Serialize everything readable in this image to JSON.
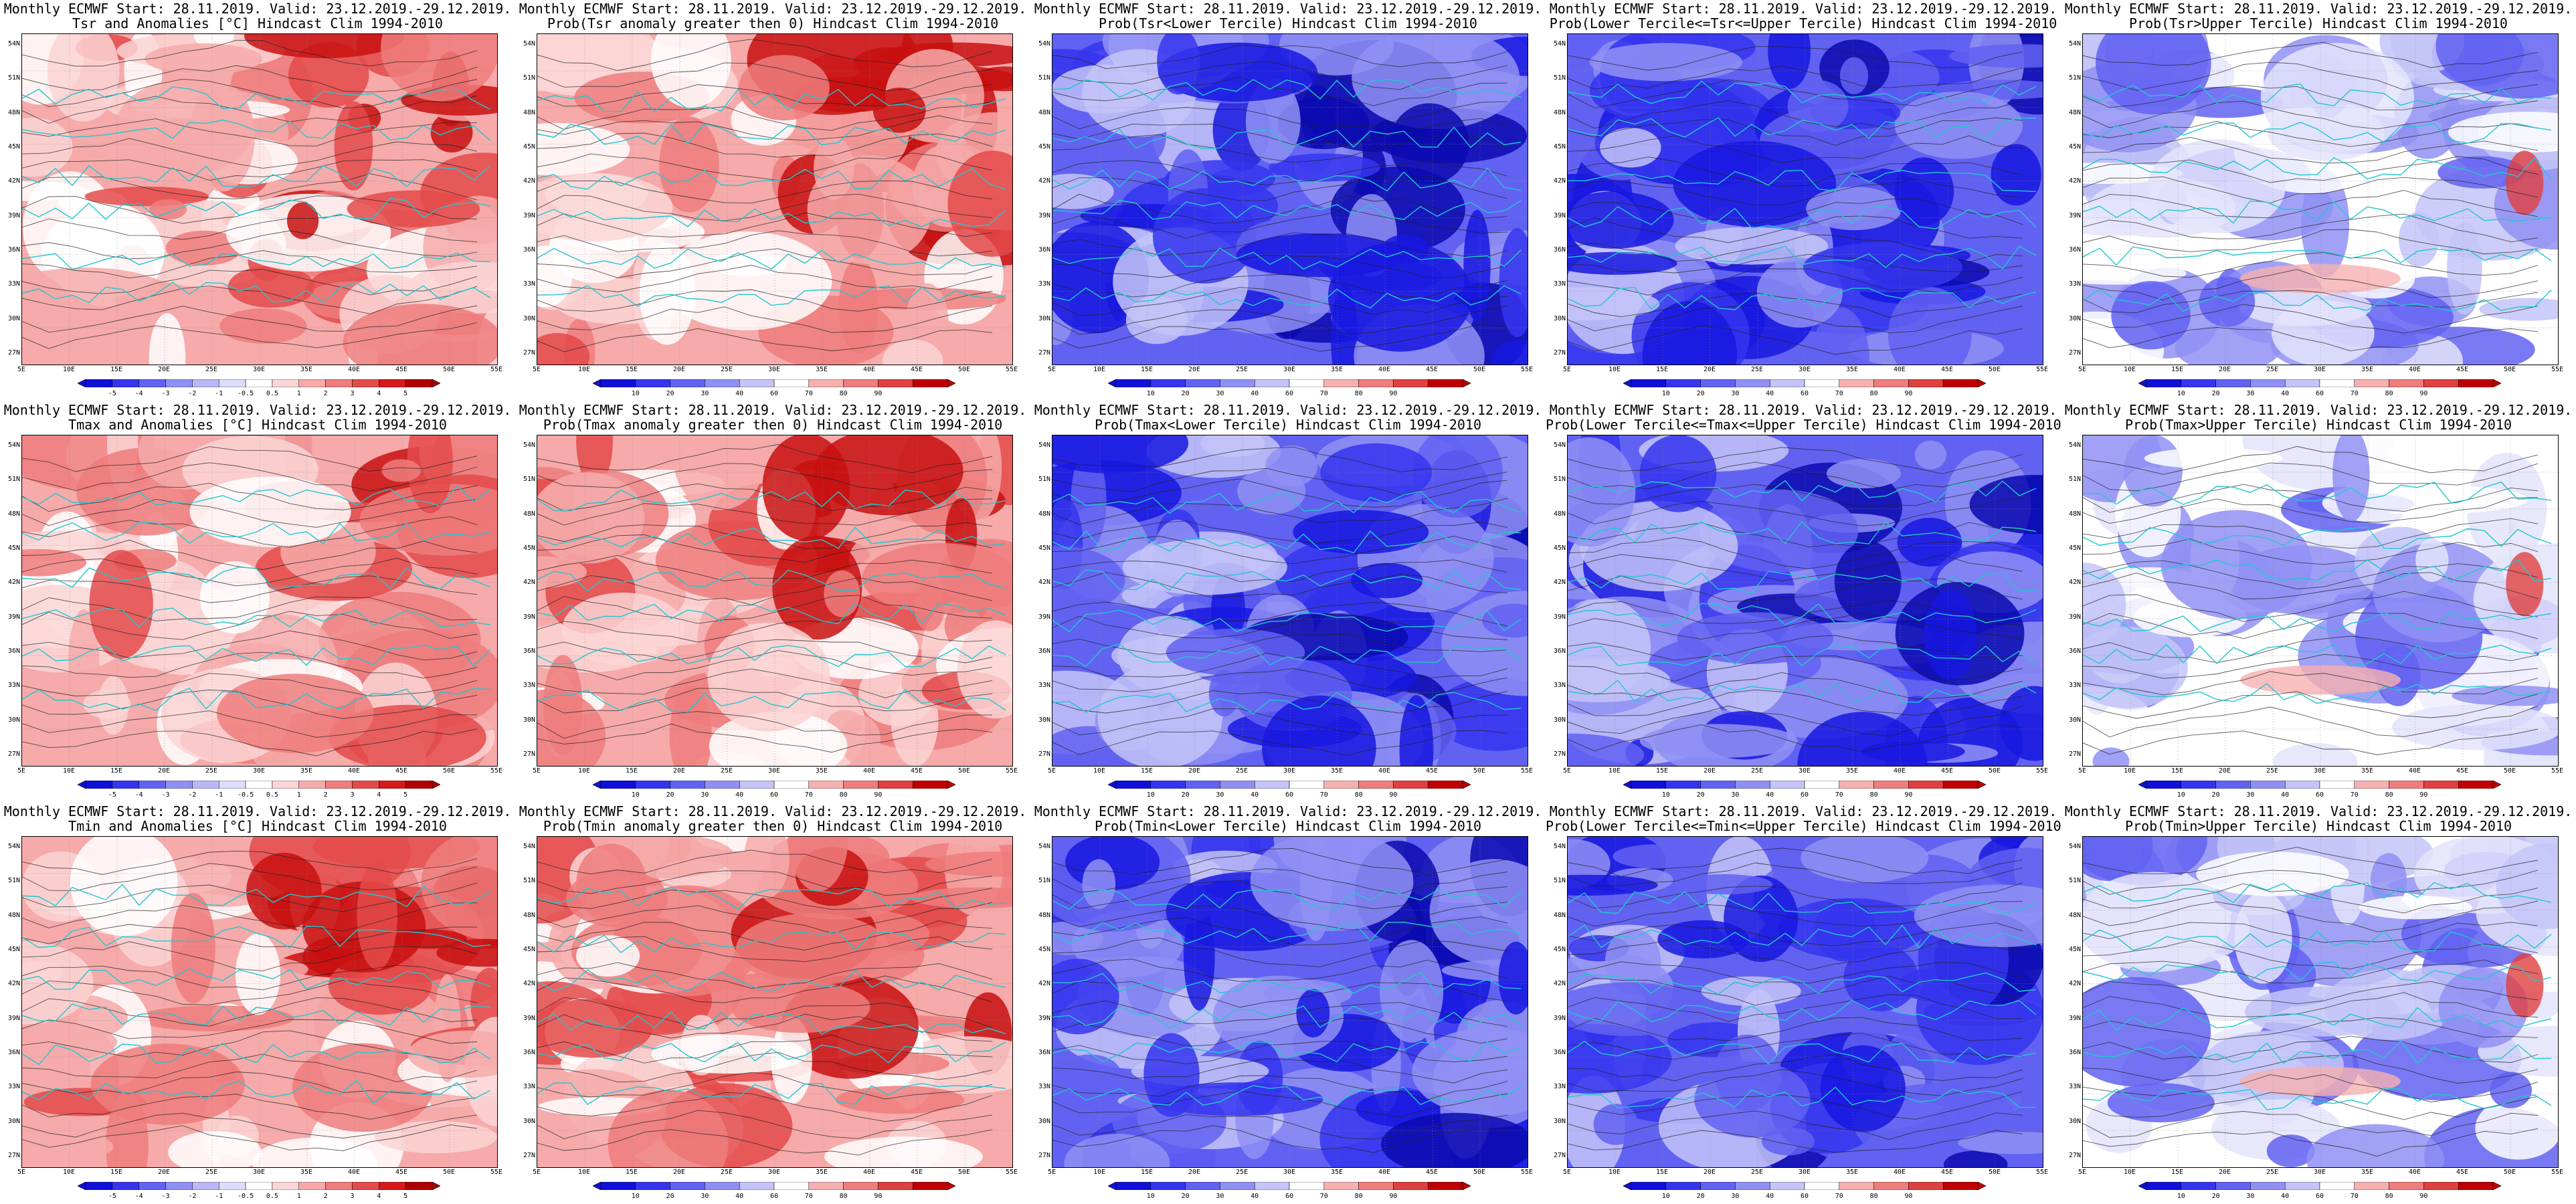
{
  "lat_labels": [
    "54N",
    "51N",
    "48N",
    "45N",
    "42N",
    "39N",
    "36N",
    "33N",
    "30N",
    "27N"
  ],
  "lon_labels": [
    "5E",
    "10E",
    "15E",
    "20E",
    "25E",
    "30E",
    "35E",
    "40E",
    "45E",
    "50E",
    "55E"
  ],
  "colorbars": {
    "anomaly": {
      "ticks": [
        "-5",
        "-4",
        "-3",
        "-2",
        "-1",
        "-0.5",
        "0.5",
        "1",
        "2",
        "3",
        "4",
        "5"
      ],
      "colors": [
        "#1010d8",
        "#3535ee",
        "#6262f2",
        "#9090f4",
        "#b8b8f8",
        "#dcdcfb",
        "#ffffff",
        "#fbd5d5",
        "#f6aaaa",
        "#ee7d7d",
        "#e44a4a",
        "#d81919",
        "#b00000"
      ]
    },
    "prob": {
      "ticks": [
        "10",
        "20",
        "30",
        "40",
        "60",
        "70",
        "80",
        "90"
      ],
      "colors": [
        "#1010d8",
        "#3535ee",
        "#6262f2",
        "#9090f4",
        "#c4c4f8",
        "#ffffff",
        "#f6b0b0",
        "#ee7d7d",
        "#e04040",
        "#c00000"
      ]
    }
  },
  "field_colors": {
    "red": [
      "#ffffff",
      "#fbd5d5",
      "#f6aaaa",
      "#ee7d7d",
      "#e44a4a",
      "#c81010"
    ],
    "blue": [
      "#c4c4f8",
      "#9090f4",
      "#6262f2",
      "#3535ee",
      "#1818e0",
      "#0a0ab0"
    ],
    "light": [
      "#ffffff",
      "#e4e4fb",
      "#c4c4f8",
      "#9090f4",
      "#6262f2",
      "#f6b0b0"
    ]
  },
  "panels": [
    {
      "id": "tsr-anomaly",
      "title1": "Monthly ECMWF Start: 28.11.2019. Valid: 23.12.2019.-29.12.2019.",
      "title2": "Tsr and Anomalies [°C] Hindcast Clim 1994-2010",
      "palette": "red",
      "bar": "anomaly",
      "seed": 11
    },
    {
      "id": "tsr-prob-gt0",
      "title1": "Monthly ECMWF Start: 28.11.2019. Valid: 23.12.2019.-29.12.2019.",
      "title2": "Prob(Tsr anomaly greater then 0) Hindcast Clim 1994-2010",
      "palette": "red",
      "bar": "prob",
      "seed": 12
    },
    {
      "id": "tsr-prob-lower",
      "title1": "Monthly ECMWF Start: 28.11.2019. Valid: 23.12.2019.-29.12.2019.",
      "title2": "Prob(Tsr<Lower Tercile) Hindcast Clim 1994-2010",
      "palette": "blue",
      "bar": "prob",
      "seed": 13
    },
    {
      "id": "tsr-prob-middle",
      "title1": "Monthly ECMWF Start: 28.11.2019. Valid: 23.12.2019.-29.12.2019.",
      "title2": "Prob(Lower Tercile<=Tsr<=Upper Tercile) Hindcast Clim 1994-2010",
      "palette": "blue",
      "bar": "prob",
      "seed": 14
    },
    {
      "id": "tsr-prob-upper",
      "title1": "Monthly ECMWF Start: 28.11.2019. Valid: 23.12.2019.-29.12.2019.",
      "title2": "Prob(Tsr>Upper Tercile) Hindcast Clim 1994-2010",
      "palette": "light",
      "bar": "prob",
      "seed": 15
    },
    {
      "id": "tmax-anomaly",
      "title1": "Monthly ECMWF Start: 28.11.2019. Valid: 23.12.2019.-29.12.2019.",
      "title2": "Tmax and Anomalies [°C] Hindcast Clim 1994-2010",
      "palette": "red",
      "bar": "anomaly",
      "seed": 21
    },
    {
      "id": "tmax-prob-gt0",
      "title1": "Monthly ECMWF Start: 28.11.2019. Valid: 23.12.2019.-29.12.2019.",
      "title2": "Prob(Tmax anomaly greater then 0) Hindcast Clim 1994-2010",
      "palette": "red",
      "bar": "prob",
      "seed": 22
    },
    {
      "id": "tmax-prob-lower",
      "title1": "Monthly ECMWF Start: 28.11.2019. Valid: 23.12.2019.-29.12.2019.",
      "title2": "Prob(Tmax<Lower Tercile) Hindcast Clim 1994-2010",
      "palette": "blue",
      "bar": "prob",
      "seed": 23
    },
    {
      "id": "tmax-prob-middle",
      "title1": "Monthly ECMWF Start: 28.11.2019. Valid: 23.12.2019.-29.12.2019.",
      "title2": "Prob(Lower Tercile<=Tmax<=Upper Tercile) Hindcast Clim 1994-2010",
      "palette": "blue",
      "bar": "prob",
      "seed": 24
    },
    {
      "id": "tmax-prob-upper",
      "title1": "Monthly ECMWF Start: 28.11.2019. Valid: 23.12.2019.-29.12.2019.",
      "title2": "Prob(Tmax>Upper Tercile) Hindcast Clim 1994-2010",
      "palette": "light",
      "bar": "prob",
      "seed": 25
    },
    {
      "id": "tmin-anomaly",
      "title1": "Monthly ECMWF Start: 28.11.2019. Valid: 23.12.2019.-29.12.2019.",
      "title2": "Tmin and Anomalies [°C] Hindcast Clim 1994-2010",
      "palette": "red",
      "bar": "anomaly",
      "seed": 31
    },
    {
      "id": "tmin-prob-gt0",
      "title1": "Monthly ECMWF Start: 28.11.2019. Valid: 23.12.2019.-29.12.2019.",
      "title2": "Prob(Tmin anomaly greater then 0) Hindcast Clim 1994-2010",
      "palette": "red",
      "bar": "prob",
      "seed": 32
    },
    {
      "id": "tmin-prob-lower",
      "title1": "Monthly ECMWF Start: 28.11.2019. Valid: 23.12.2019.-29.12.2019.",
      "title2": "Prob(Tmin<Lower Tercile) Hindcast Clim 1994-2010",
      "palette": "blue",
      "bar": "prob",
      "seed": 33
    },
    {
      "id": "tmin-prob-middle",
      "title1": "Monthly ECMWF Start: 28.11.2019. Valid: 23.12.2019.-29.12.2019.",
      "title2": "Prob(Lower Tercile<=Tmin<=Upper Tercile) Hindcast Clim 1994-2010",
      "palette": "blue",
      "bar": "prob",
      "seed": 34
    },
    {
      "id": "tmin-prob-upper",
      "title1": "Monthly ECMWF Start: 28.11.2019. Valid: 23.12.2019.-29.12.2019.",
      "title2": "Prob(Tmin>Upper Tercile) Hindcast Clim 1994-2010",
      "palette": "light",
      "bar": "prob",
      "seed": 35
    }
  ]
}
